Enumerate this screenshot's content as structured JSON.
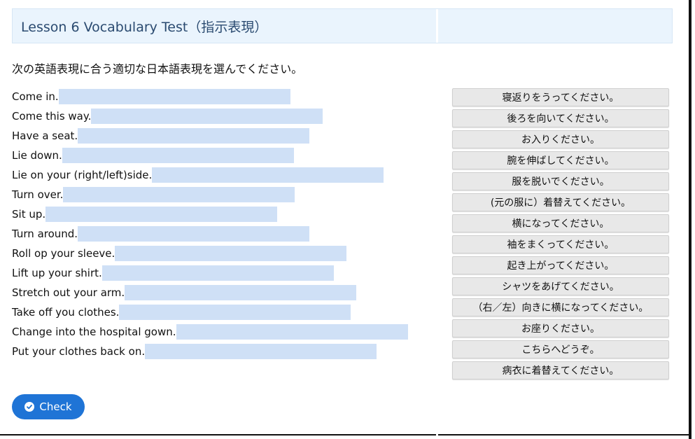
{
  "header": {
    "title": "Lesson 6 Vocabulary Test（指示表現）"
  },
  "instruction": "次の英語表現に合う適切な日本語表現を選んでください。",
  "prompts": [
    "Come in.",
    "Come this way.",
    "Have a seat.",
    "Lie down.",
    "Lie on your (right/left)side.",
    "Turn over.",
    "Sit up.",
    "Turn around.",
    "Roll op your sleeve.",
    "Lift up your shirt.",
    "Stretch out your arm.",
    "Take off you clothes.",
    "Change into the hospital gown.",
    "Put your clothes back on."
  ],
  "choices": [
    "寝返りをうってください。",
    "後ろを向いてください。",
    "お入りください。",
    "腕を伸ばしてください。",
    "服を脱いでください。",
    "(元の服に）着替えてください。",
    "横になってください。",
    "袖をまくってください。",
    "起き上がってください。",
    "シャツをあげてください。",
    "（右／左）向きに横になってください。",
    "お座りください。",
    "こちらへどうぞ。",
    "病衣に着替えてください。"
  ],
  "check_button": {
    "label": "Check",
    "icon": "check-circle-icon"
  },
  "colors": {
    "accent": "#1f74d6",
    "drop_zone": "#cfe0f6",
    "header_bg": "#eaf4fd",
    "title": "#2a4a70"
  }
}
